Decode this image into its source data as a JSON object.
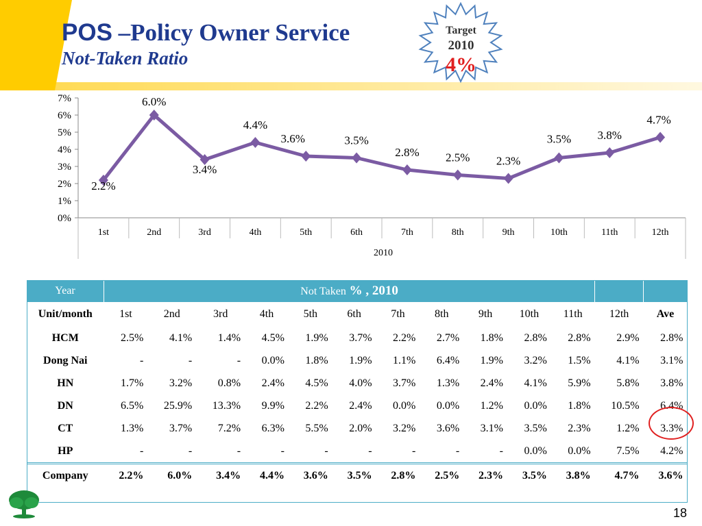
{
  "slide": {
    "title_prefix": "POS",
    "title_rest": " –Policy Owner Service",
    "subtitle": "Not-Taken Ratio",
    "page_number": "18"
  },
  "target_badge": {
    "line1": "Target",
    "line2": "2010",
    "line3": "4%",
    "value_color": "#e02020"
  },
  "colors": {
    "accent": "#1f3a8f",
    "line": "#7b5ba3",
    "table_header": "#4bacc6",
    "banner": "#ffcc00"
  },
  "chart_data": {
    "type": "line",
    "categories": [
      "1st",
      "2nd",
      "3rd",
      "4th",
      "5th",
      "6th",
      "7th",
      "8th",
      "9th",
      "10th",
      "11th",
      "12th"
    ],
    "group_label": "2010",
    "series": [
      {
        "values": [
          2.2,
          6.0,
          3.4,
          4.4,
          3.6,
          3.5,
          2.8,
          2.5,
          2.3,
          3.5,
          3.8,
          4.7
        ]
      }
    ],
    "data_labels": [
      "2.2%",
      "6.0%",
      "3.4%",
      "4.4%",
      "3.6%",
      "3.5%",
      "2.8%",
      "2.5%",
      "2.3%",
      "3.5%",
      "3.8%",
      "4.7%"
    ],
    "ylim": [
      0,
      7
    ],
    "yticks": [
      "0%",
      "1%",
      "2%",
      "3%",
      "4%",
      "5%",
      "6%",
      "7%"
    ],
    "grid": false,
    "legend": "none"
  },
  "table": {
    "header_year": "Year",
    "header_title_prefix": "Not Taken",
    "header_title_suffix": "% , 2010",
    "units_label": "Unit/month",
    "columns": [
      "1st",
      "2nd",
      "3rd",
      "4th",
      "5th",
      "6th",
      "7th",
      "8th",
      "9th",
      "10th",
      "11th",
      "12th",
      "Ave"
    ],
    "rows": [
      {
        "unit": "HCM",
        "values": [
          "2.5%",
          "4.1%",
          "1.4%",
          "4.5%",
          "1.9%",
          "3.7%",
          "2.2%",
          "2.7%",
          "1.8%",
          "2.8%",
          "2.8%",
          "2.9%",
          "2.8%"
        ]
      },
      {
        "unit": "Dong Nai",
        "values": [
          "-",
          "-",
          "-",
          "0.0%",
          "1.8%",
          "1.9%",
          "1.1%",
          "6.4%",
          "1.9%",
          "3.2%",
          "1.5%",
          "4.1%",
          "3.1%"
        ]
      },
      {
        "unit": "HN",
        "values": [
          "1.7%",
          "3.2%",
          "0.8%",
          "2.4%",
          "4.5%",
          "4.0%",
          "3.7%",
          "1.3%",
          "2.4%",
          "4.1%",
          "5.9%",
          "5.8%",
          "3.8%"
        ]
      },
      {
        "unit": "DN",
        "values": [
          "6.5%",
          "25.9%",
          "13.3%",
          "9.9%",
          "2.2%",
          "2.4%",
          "0.0%",
          "0.0%",
          "1.2%",
          "0.0%",
          "1.8%",
          "10.5%",
          "6.4%"
        ]
      },
      {
        "unit": "CT",
        "values": [
          "1.3%",
          "3.7%",
          "7.2%",
          "6.3%",
          "5.5%",
          "2.0%",
          "3.2%",
          "3.6%",
          "3.1%",
          "3.5%",
          "2.3%",
          "1.2%",
          "3.3%"
        ]
      },
      {
        "unit": "HP",
        "values": [
          "-",
          "-",
          "-",
          "-",
          "-",
          "-",
          "-",
          "-",
          "-",
          "0.0%",
          "0.0%",
          "7.5%",
          "4.2%"
        ]
      }
    ],
    "company": {
      "unit": "Company",
      "values": [
        "2.2%",
        "6.0%",
        "3.4%",
        "4.4%",
        "3.6%",
        "3.5%",
        "2.8%",
        "2.5%",
        "2.3%",
        "3.5%",
        "3.8%",
        "4.7%",
        "3.6%"
      ]
    }
  }
}
